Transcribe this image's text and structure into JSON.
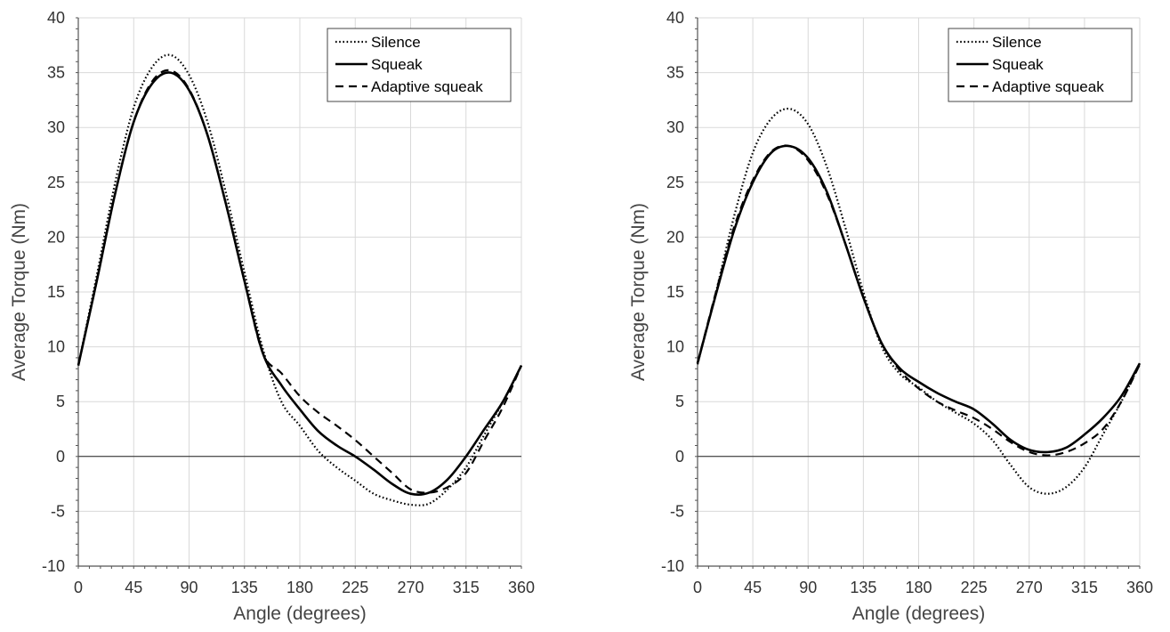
{
  "chart_data": [
    {
      "type": "line",
      "xlabel": "Angle (degrees)",
      "ylabel": "Average Torque (Nm)",
      "xlim": [
        0,
        360
      ],
      "ylim": [
        -10,
        40
      ],
      "xticks": [
        0,
        45,
        90,
        135,
        180,
        225,
        270,
        315,
        360
      ],
      "yticks": [
        -10,
        -5,
        0,
        5,
        10,
        15,
        20,
        25,
        30,
        35,
        40
      ],
      "grid": true,
      "legend_position": "top-right",
      "x": [
        0,
        15,
        30,
        45,
        60,
        75,
        90,
        105,
        120,
        135,
        150,
        165,
        180,
        195,
        210,
        225,
        240,
        255,
        270,
        285,
        300,
        315,
        330,
        345,
        360
      ],
      "series": [
        {
          "name": "Silence",
          "style": "dotted",
          "values": [
            8.3,
            16.5,
            25.0,
            31.8,
            35.5,
            36.6,
            34.8,
            30.5,
            24.0,
            16.8,
            9.8,
            5.0,
            2.8,
            0.5,
            -1.0,
            -2.2,
            -3.4,
            -4.0,
            -4.4,
            -4.3,
            -3.0,
            -1.0,
            2.0,
            5.0,
            8.3
          ]
        },
        {
          "name": "Squeak",
          "style": "solid",
          "values": [
            8.3,
            16.0,
            24.0,
            30.5,
            34.0,
            35.0,
            33.4,
            29.3,
            23.0,
            16.0,
            9.4,
            6.5,
            4.3,
            2.3,
            1.0,
            0.0,
            -1.2,
            -2.5,
            -3.4,
            -3.3,
            -2.1,
            0.0,
            2.5,
            5.0,
            8.3
          ]
        },
        {
          "name": "Adaptive squeak",
          "style": "dashed",
          "values": [
            8.3,
            16.0,
            24.0,
            30.5,
            34.2,
            35.2,
            33.5,
            29.3,
            23.0,
            16.0,
            9.4,
            7.6,
            5.5,
            4.0,
            2.8,
            1.5,
            0.0,
            -1.5,
            -3.0,
            -3.3,
            -2.8,
            -1.5,
            1.5,
            4.5,
            8.3
          ]
        }
      ]
    },
    {
      "type": "line",
      "xlabel": "Angle (degrees)",
      "ylabel": "Average Torque (Nm)",
      "xlim": [
        0,
        360
      ],
      "ylim": [
        -10,
        40
      ],
      "xticks": [
        0,
        45,
        90,
        135,
        180,
        225,
        270,
        315,
        360
      ],
      "yticks": [
        -10,
        -5,
        0,
        5,
        10,
        15,
        20,
        25,
        30,
        35,
        40
      ],
      "grid": true,
      "legend_position": "top-right",
      "x": [
        0,
        15,
        30,
        45,
        60,
        75,
        90,
        105,
        120,
        135,
        150,
        165,
        180,
        195,
        210,
        225,
        240,
        255,
        270,
        285,
        300,
        315,
        330,
        345,
        360
      ],
      "series": [
        {
          "name": "Silence",
          "style": "dotted",
          "values": [
            8.4,
            15.0,
            22.0,
            27.7,
            30.8,
            31.7,
            30.3,
            26.5,
            21.0,
            15.0,
            10.0,
            7.5,
            6.3,
            5.0,
            4.0,
            3.0,
            1.5,
            -0.8,
            -2.8,
            -3.4,
            -2.8,
            -1.0,
            2.0,
            5.0,
            8.4
          ]
        },
        {
          "name": "Squeak",
          "style": "solid",
          "values": [
            8.5,
            14.8,
            20.7,
            25.0,
            27.7,
            28.3,
            27.2,
            24.2,
            19.5,
            14.5,
            10.3,
            8.0,
            6.8,
            5.8,
            5.0,
            4.3,
            3.0,
            1.5,
            0.6,
            0.4,
            0.8,
            2.0,
            3.5,
            5.5,
            8.5
          ]
        },
        {
          "name": "Adaptive squeak",
          "style": "dashed",
          "values": [
            8.5,
            15.0,
            21.0,
            25.2,
            27.8,
            28.3,
            27.0,
            24.0,
            19.5,
            14.5,
            10.3,
            7.8,
            6.2,
            5.0,
            4.2,
            3.5,
            2.5,
            1.3,
            0.4,
            0.1,
            0.4,
            1.2,
            2.5,
            5.0,
            8.4
          ]
        }
      ]
    }
  ]
}
